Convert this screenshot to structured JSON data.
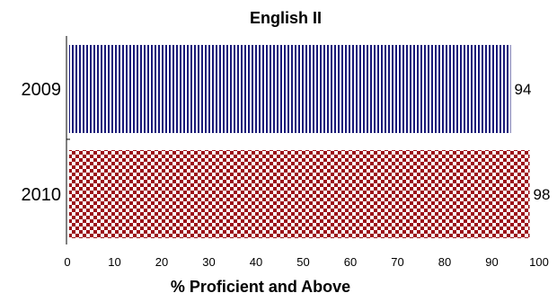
{
  "chart_data": {
    "type": "bar",
    "orientation": "horizontal",
    "title": "English II",
    "xlabel": "% Proficient and Above",
    "ylabel": "",
    "categories": [
      "2009",
      "2010"
    ],
    "values": [
      94,
      98
    ],
    "xlim": [
      0,
      100
    ],
    "xticks": [
      "0",
      "10",
      "20",
      "30",
      "40",
      "50",
      "60",
      "70",
      "80",
      "90",
      "100"
    ],
    "data_labels": [
      "94",
      "98"
    ],
    "bar_patterns": [
      "vertical-stripes",
      "checkerboard"
    ],
    "bar_colors": [
      "#1a1a7a",
      "#9b0f17"
    ],
    "grid": false,
    "legend": "none"
  }
}
